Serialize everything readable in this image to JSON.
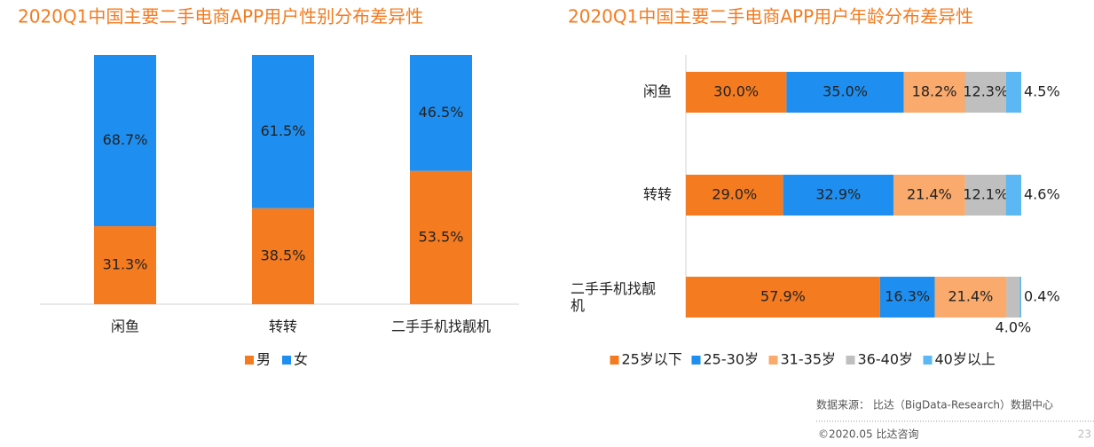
{
  "chart_data": [
    {
      "type": "stacked_bar",
      "title": "2020Q1中国主要二手电商APP用户性别分布差异性",
      "categories": [
        "闲鱼",
        "转转",
        "二手手机找靓机"
      ],
      "series": [
        {
          "name": "男",
          "color": "#f47b20",
          "values": [
            31.3,
            38.5,
            53.5
          ],
          "value_labels": [
            "31.3%",
            "38.5%",
            "53.5%"
          ]
        },
        {
          "name": "女",
          "color": "#1e8ff0",
          "values": [
            68.7,
            61.5,
            46.5
          ],
          "value_labels": [
            "68.7%",
            "61.5%",
            "46.5%"
          ]
        }
      ],
      "ylim": [
        0,
        100
      ],
      "legend": "bottom"
    },
    {
      "type": "stacked_barh",
      "title": "2020Q1中国主要二手电商APP用户年龄分布差异性",
      "categories": [
        "闲鱼",
        "转转",
        "二手手机找靓机"
      ],
      "series": [
        {
          "name": "25岁以下",
          "color": "#f47b20",
          "values": [
            30.0,
            29.0,
            57.9
          ],
          "value_labels": [
            "30.0%",
            "29.0%",
            "57.9%"
          ]
        },
        {
          "name": "25-30岁",
          "color": "#1e8ff0",
          "values": [
            35.0,
            32.9,
            16.3
          ],
          "value_labels": [
            "35.0%",
            "32.9%",
            "16.3%"
          ]
        },
        {
          "name": "31-35岁",
          "color": "#f9aa6c",
          "values": [
            18.2,
            21.4,
            21.4
          ],
          "value_labels": [
            "18.2%",
            "21.4%",
            "21.4%"
          ]
        },
        {
          "name": "36-40岁",
          "color": "#bfbfbf",
          "values": [
            12.3,
            12.1,
            4.0
          ],
          "value_labels": [
            "12.3%",
            "12.1%",
            "4.0%"
          ]
        },
        {
          "name": "40岁以上",
          "color": "#5bb8f5",
          "values": [
            4.5,
            4.6,
            0.4
          ],
          "value_labels": [
            "4.5%",
            "4.6%",
            "0.4%"
          ]
        }
      ],
      "xlim": [
        0,
        100
      ],
      "legend": "bottom"
    }
  ],
  "footer": {
    "source": "数据来源： 比达（BigData-Research）数据中心",
    "copyright": "©2020.05 比达咨询",
    "page": "23"
  }
}
